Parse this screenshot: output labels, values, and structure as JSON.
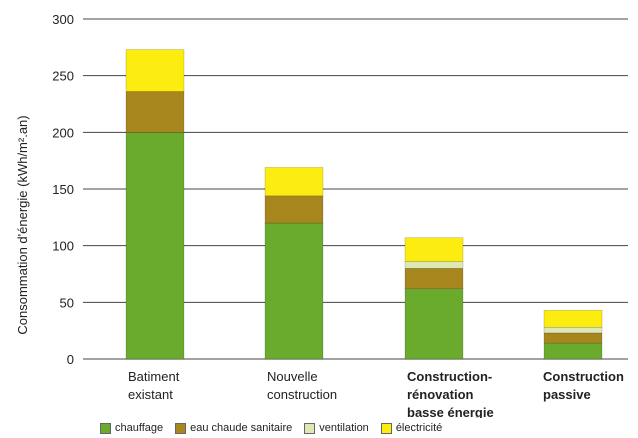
{
  "chart_data": {
    "type": "bar",
    "stacked": true,
    "title": "",
    "xlabel": "",
    "ylabel": "Consommation d'énergie (kWh/m².an)",
    "ylim": [
      0,
      300
    ],
    "yticks": [
      "0",
      "50",
      "100",
      "150",
      "200",
      "250",
      "300"
    ],
    "grid": true,
    "legend_position": "bottom",
    "categories": [
      [
        "Batiment",
        "existant"
      ],
      [
        "Nouvelle",
        "construction"
      ],
      [
        "Construction-",
        "rénovation",
        "basse énergie"
      ],
      [
        "Construction",
        "passive"
      ]
    ],
    "category_bold": [
      false,
      false,
      true,
      true
    ],
    "series": [
      {
        "name": "chauffage",
        "color": "#6aab2e",
        "values": [
          200,
          120,
          62,
          14
        ]
      },
      {
        "name": "eau chaude sanitaire",
        "color": "#a8861e",
        "values": [
          36,
          24,
          18,
          9
        ]
      },
      {
        "name": "ventilation",
        "color": "#dde8b4",
        "values": [
          0,
          0,
          6,
          5
        ]
      },
      {
        "name": "électricité",
        "color": "#fcec10",
        "values": [
          37,
          25,
          21,
          15
        ]
      }
    ]
  }
}
